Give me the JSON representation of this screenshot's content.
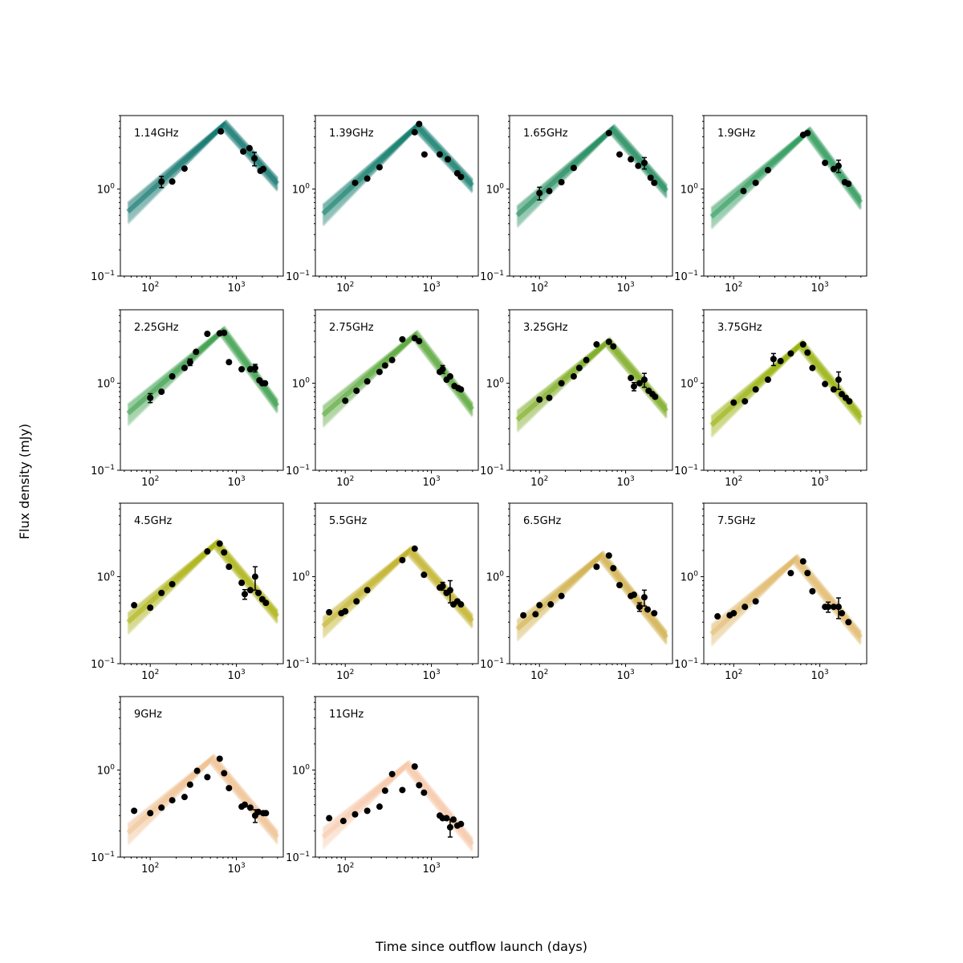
{
  "figure": {
    "xlabel": "Time since outflow launch (days)",
    "ylabel": "Flux density (mJy)",
    "x_ticks": [
      {
        "value": 100,
        "base": "10",
        "exp": "2"
      },
      {
        "value": 1000,
        "base": "10",
        "exp": "3"
      }
    ],
    "y_ticks": [
      {
        "value": 0.1,
        "base": "10",
        "exp": "−1"
      },
      {
        "value": 1,
        "base": "10",
        "exp": "0"
      }
    ]
  },
  "chart_data": {
    "type": "scatter",
    "x_scale": "log",
    "y_scale": "log",
    "xlim": [
      45,
      3500
    ],
    "ylim": [
      0.1,
      7
    ],
    "xlabel": "Time since outflow launch (days)",
    "ylabel": "Flux density (mJy)",
    "panels": [
      {
        "label": "1.14GHz",
        "color": "#0f766e",
        "model": {
          "peak_t": 720,
          "peak_f": 5.5,
          "start_f": 0.55,
          "end_f": 1.15
        },
        "points": [
          {
            "t": 135,
            "f": 1.22,
            "err": 0.18
          },
          {
            "t": 180,
            "f": 1.22
          },
          {
            "t": 250,
            "f": 1.72
          },
          {
            "t": 660,
            "f": 4.6
          },
          {
            "t": 1200,
            "f": 2.7
          },
          {
            "t": 1420,
            "f": 2.95
          },
          {
            "t": 1620,
            "f": 2.25,
            "err": 0.4
          },
          {
            "t": 1900,
            "f": 1.62
          },
          {
            "t": 2050,
            "f": 1.7
          }
        ]
      },
      {
        "label": "1.39GHz",
        "color": "#137d69",
        "model": {
          "peak_t": 680,
          "peak_f": 5.3,
          "start_f": 0.52,
          "end_f": 1.1
        },
        "points": [
          {
            "t": 130,
            "f": 1.18
          },
          {
            "t": 180,
            "f": 1.32
          },
          {
            "t": 250,
            "f": 1.78
          },
          {
            "t": 640,
            "f": 4.5
          },
          {
            "t": 720,
            "f": 5.6
          },
          {
            "t": 830,
            "f": 2.5
          },
          {
            "t": 1250,
            "f": 2.5
          },
          {
            "t": 1550,
            "f": 2.2
          },
          {
            "t": 2000,
            "f": 1.52
          },
          {
            "t": 2200,
            "f": 1.38
          }
        ]
      },
      {
        "label": "1.65GHz",
        "color": "#1f8a5c",
        "model": {
          "peak_t": 700,
          "peak_f": 4.9,
          "start_f": 0.5,
          "end_f": 0.95
        },
        "points": [
          {
            "t": 100,
            "f": 0.9,
            "err": 0.15
          },
          {
            "t": 130,
            "f": 0.95
          },
          {
            "t": 180,
            "f": 1.2
          },
          {
            "t": 250,
            "f": 1.75
          },
          {
            "t": 640,
            "f": 4.4
          },
          {
            "t": 850,
            "f": 2.5
          },
          {
            "t": 1150,
            "f": 2.2
          },
          {
            "t": 1400,
            "f": 1.85
          },
          {
            "t": 1650,
            "f": 2.0,
            "err": 0.3
          },
          {
            "t": 1950,
            "f": 1.35
          },
          {
            "t": 2150,
            "f": 1.18
          }
        ]
      },
      {
        "label": "1.9GHz",
        "color": "#2e9a5a",
        "model": {
          "peak_t": 730,
          "peak_f": 4.6,
          "start_f": 0.48,
          "end_f": 0.7
        },
        "points": [
          {
            "t": 130,
            "f": 0.95
          },
          {
            "t": 180,
            "f": 1.18
          },
          {
            "t": 250,
            "f": 1.65
          },
          {
            "t": 640,
            "f": 4.2
          },
          {
            "t": 720,
            "f": 4.4
          },
          {
            "t": 1150,
            "f": 2.0
          },
          {
            "t": 1450,
            "f": 1.7
          },
          {
            "t": 1650,
            "f": 1.85,
            "err": 0.3
          },
          {
            "t": 1950,
            "f": 1.2
          },
          {
            "t": 2150,
            "f": 1.15
          }
        ]
      },
      {
        "label": "2.25GHz",
        "color": "#3d9f4c",
        "model": {
          "peak_t": 690,
          "peak_f": 4.0,
          "start_f": 0.45,
          "end_f": 0.55
        },
        "points": [
          {
            "t": 100,
            "f": 0.68,
            "err": 0.08
          },
          {
            "t": 135,
            "f": 0.8
          },
          {
            "t": 180,
            "f": 1.2
          },
          {
            "t": 250,
            "f": 1.5
          },
          {
            "t": 290,
            "f": 1.75,
            "err": 0.15
          },
          {
            "t": 340,
            "f": 2.3
          },
          {
            "t": 460,
            "f": 3.7
          },
          {
            "t": 640,
            "f": 3.75
          },
          {
            "t": 720,
            "f": 3.8
          },
          {
            "t": 820,
            "f": 1.75
          },
          {
            "t": 1150,
            "f": 1.45
          },
          {
            "t": 1450,
            "f": 1.45
          },
          {
            "t": 1650,
            "f": 1.5,
            "err": 0.15
          },
          {
            "t": 1850,
            "f": 1.08
          },
          {
            "t": 2000,
            "f": 1.0
          },
          {
            "t": 2150,
            "f": 1.0
          }
        ]
      },
      {
        "label": "2.75GHz",
        "color": "#5aa83a",
        "model": {
          "peak_t": 650,
          "peak_f": 3.6,
          "start_f": 0.43,
          "end_f": 0.5
        },
        "points": [
          {
            "t": 100,
            "f": 0.63
          },
          {
            "t": 135,
            "f": 0.82
          },
          {
            "t": 180,
            "f": 1.05
          },
          {
            "t": 250,
            "f": 1.35
          },
          {
            "t": 290,
            "f": 1.6
          },
          {
            "t": 350,
            "f": 1.85
          },
          {
            "t": 460,
            "f": 3.2
          },
          {
            "t": 640,
            "f": 3.3
          },
          {
            "t": 720,
            "f": 3.05
          },
          {
            "t": 1250,
            "f": 1.35
          },
          {
            "t": 1350,
            "f": 1.45,
            "err": 0.15
          },
          {
            "t": 1500,
            "f": 1.1
          },
          {
            "t": 1650,
            "f": 1.2
          },
          {
            "t": 1850,
            "f": 0.93
          },
          {
            "t": 2050,
            "f": 0.88
          },
          {
            "t": 2200,
            "f": 0.85
          }
        ]
      },
      {
        "label": "3.25GHz",
        "color": "#7aad1e",
        "model": {
          "peak_t": 620,
          "peak_f": 3.0,
          "start_f": 0.38,
          "end_f": 0.48
        },
        "points": [
          {
            "t": 100,
            "f": 0.65
          },
          {
            "t": 130,
            "f": 0.68
          },
          {
            "t": 180,
            "f": 1.0
          },
          {
            "t": 250,
            "f": 1.2
          },
          {
            "t": 290,
            "f": 1.5
          },
          {
            "t": 350,
            "f": 1.85
          },
          {
            "t": 460,
            "f": 2.8
          },
          {
            "t": 640,
            "f": 3.0
          },
          {
            "t": 720,
            "f": 2.65
          },
          {
            "t": 1150,
            "f": 1.15
          },
          {
            "t": 1250,
            "f": 0.92,
            "err": 0.1
          },
          {
            "t": 1450,
            "f": 1.0
          },
          {
            "t": 1650,
            "f": 1.1,
            "err": 0.2
          },
          {
            "t": 1850,
            "f": 0.82
          },
          {
            "t": 2050,
            "f": 0.75
          },
          {
            "t": 2200,
            "f": 0.7
          }
        ]
      },
      {
        "label": "3.75GHz",
        "color": "#97b10b",
        "model": {
          "peak_t": 600,
          "peak_f": 2.8,
          "start_f": 0.33,
          "end_f": 0.4
        },
        "points": [
          {
            "t": 100,
            "f": 0.6
          },
          {
            "t": 135,
            "f": 0.62
          },
          {
            "t": 180,
            "f": 0.85
          },
          {
            "t": 250,
            "f": 1.1
          },
          {
            "t": 290,
            "f": 1.9,
            "err": 0.3
          },
          {
            "t": 350,
            "f": 1.8
          },
          {
            "t": 460,
            "f": 2.2
          },
          {
            "t": 640,
            "f": 2.8
          },
          {
            "t": 720,
            "f": 2.25
          },
          {
            "t": 820,
            "f": 1.5
          },
          {
            "t": 1150,
            "f": 0.98
          },
          {
            "t": 1450,
            "f": 0.85
          },
          {
            "t": 1650,
            "f": 1.1,
            "err": 0.25
          },
          {
            "t": 1800,
            "f": 0.75
          },
          {
            "t": 2000,
            "f": 0.68
          },
          {
            "t": 2200,
            "f": 0.62
          }
        ]
      },
      {
        "label": "4.5GHz",
        "color": "#adb30e",
        "model": {
          "peak_t": 580,
          "peak_f": 2.4,
          "start_f": 0.3,
          "end_f": 0.35
        },
        "points": [
          {
            "t": 65,
            "f": 0.47
          },
          {
            "t": 100,
            "f": 0.44
          },
          {
            "t": 135,
            "f": 0.65
          },
          {
            "t": 180,
            "f": 0.82
          },
          {
            "t": 460,
            "f": 1.95
          },
          {
            "t": 640,
            "f": 2.4
          },
          {
            "t": 720,
            "f": 1.9
          },
          {
            "t": 820,
            "f": 1.3
          },
          {
            "t": 1150,
            "f": 0.85
          },
          {
            "t": 1250,
            "f": 0.63,
            "err": 0.08
          },
          {
            "t": 1450,
            "f": 0.7
          },
          {
            "t": 1650,
            "f": 1.0,
            "err": 0.3
          },
          {
            "t": 1800,
            "f": 0.65
          },
          {
            "t": 2000,
            "f": 0.55
          },
          {
            "t": 2200,
            "f": 0.5
          }
        ]
      },
      {
        "label": "5.5GHz",
        "color": "#c2b22a",
        "model": {
          "peak_t": 560,
          "peak_f": 2.0,
          "start_f": 0.27,
          "end_f": 0.31
        },
        "points": [
          {
            "t": 65,
            "f": 0.39
          },
          {
            "t": 90,
            "f": 0.38
          },
          {
            "t": 100,
            "f": 0.4
          },
          {
            "t": 135,
            "f": 0.52
          },
          {
            "t": 180,
            "f": 0.7
          },
          {
            "t": 460,
            "f": 1.55
          },
          {
            "t": 640,
            "f": 2.1
          },
          {
            "t": 820,
            "f": 1.05
          },
          {
            "t": 1250,
            "f": 0.75
          },
          {
            "t": 1350,
            "f": 0.78,
            "err": 0.08
          },
          {
            "t": 1500,
            "f": 0.65
          },
          {
            "t": 1650,
            "f": 0.7,
            "err": 0.2
          },
          {
            "t": 1800,
            "f": 0.48
          },
          {
            "t": 2000,
            "f": 0.52
          },
          {
            "t": 2200,
            "f": 0.48
          }
        ]
      },
      {
        "label": "6.5GHz",
        "color": "#d3b14b",
        "model": {
          "peak_t": 520,
          "peak_f": 1.75,
          "start_f": 0.25,
          "end_f": 0.2
        },
        "points": [
          {
            "t": 65,
            "f": 0.36
          },
          {
            "t": 90,
            "f": 0.37
          },
          {
            "t": 100,
            "f": 0.47
          },
          {
            "t": 135,
            "f": 0.48
          },
          {
            "t": 180,
            "f": 0.6
          },
          {
            "t": 460,
            "f": 1.3
          },
          {
            "t": 640,
            "f": 1.75
          },
          {
            "t": 720,
            "f": 1.25
          },
          {
            "t": 850,
            "f": 0.8
          },
          {
            "t": 1150,
            "f": 0.6
          },
          {
            "t": 1250,
            "f": 0.62
          },
          {
            "t": 1450,
            "f": 0.45,
            "err": 0.05
          },
          {
            "t": 1650,
            "f": 0.58,
            "err": 0.12
          },
          {
            "t": 1800,
            "f": 0.42
          },
          {
            "t": 2150,
            "f": 0.38
          }
        ]
      },
      {
        "label": "7.5GHz",
        "color": "#e3bc6c",
        "model": {
          "peak_t": 520,
          "peak_f": 1.6,
          "start_f": 0.22,
          "end_f": 0.2
        },
        "points": [
          {
            "t": 65,
            "f": 0.35
          },
          {
            "t": 90,
            "f": 0.36
          },
          {
            "t": 100,
            "f": 0.38
          },
          {
            "t": 135,
            "f": 0.45
          },
          {
            "t": 180,
            "f": 0.52
          },
          {
            "t": 460,
            "f": 1.1
          },
          {
            "t": 640,
            "f": 1.5
          },
          {
            "t": 720,
            "f": 1.1
          },
          {
            "t": 820,
            "f": 0.68
          },
          {
            "t": 1150,
            "f": 0.45
          },
          {
            "t": 1250,
            "f": 0.45,
            "err": 0.06
          },
          {
            "t": 1450,
            "f": 0.45
          },
          {
            "t": 1650,
            "f": 0.45,
            "err": 0.12
          },
          {
            "t": 1800,
            "f": 0.38
          },
          {
            "t": 2150,
            "f": 0.3
          }
        ]
      },
      {
        "label": "9GHz",
        "color": "#f0c391",
        "model": {
          "peak_t": 520,
          "peak_f": 1.35,
          "start_f": 0.19,
          "end_f": 0.17
        },
        "points": [
          {
            "t": 65,
            "f": 0.34
          },
          {
            "t": 100,
            "f": 0.32
          },
          {
            "t": 135,
            "f": 0.37
          },
          {
            "t": 180,
            "f": 0.45
          },
          {
            "t": 250,
            "f": 0.49
          },
          {
            "t": 290,
            "f": 0.68
          },
          {
            "t": 350,
            "f": 0.98
          },
          {
            "t": 460,
            "f": 0.83
          },
          {
            "t": 640,
            "f": 1.35
          },
          {
            "t": 720,
            "f": 0.92
          },
          {
            "t": 820,
            "f": 0.62
          },
          {
            "t": 1150,
            "f": 0.38
          },
          {
            "t": 1250,
            "f": 0.4
          },
          {
            "t": 1450,
            "f": 0.37
          },
          {
            "t": 1650,
            "f": 0.3,
            "err": 0.05
          },
          {
            "t": 1800,
            "f": 0.33
          },
          {
            "t": 2050,
            "f": 0.32
          },
          {
            "t": 2200,
            "f": 0.32
          }
        ]
      },
      {
        "label": "11GHz",
        "color": "#f7c9a8",
        "model": {
          "peak_t": 520,
          "peak_f": 1.15,
          "start_f": 0.17,
          "end_f": 0.14
        },
        "points": [
          {
            "t": 65,
            "f": 0.28
          },
          {
            "t": 95,
            "f": 0.26
          },
          {
            "t": 130,
            "f": 0.31
          },
          {
            "t": 180,
            "f": 0.34
          },
          {
            "t": 250,
            "f": 0.38
          },
          {
            "t": 290,
            "f": 0.58
          },
          {
            "t": 350,
            "f": 0.9
          },
          {
            "t": 460,
            "f": 0.59
          },
          {
            "t": 640,
            "f": 1.1
          },
          {
            "t": 720,
            "f": 0.67
          },
          {
            "t": 820,
            "f": 0.55
          },
          {
            "t": 1250,
            "f": 0.3
          },
          {
            "t": 1350,
            "f": 0.28
          },
          {
            "t": 1500,
            "f": 0.28
          },
          {
            "t": 1650,
            "f": 0.22,
            "err": 0.05
          },
          {
            "t": 1800,
            "f": 0.27
          },
          {
            "t": 2000,
            "f": 0.23
          },
          {
            "t": 2200,
            "f": 0.24
          }
        ]
      }
    ]
  }
}
